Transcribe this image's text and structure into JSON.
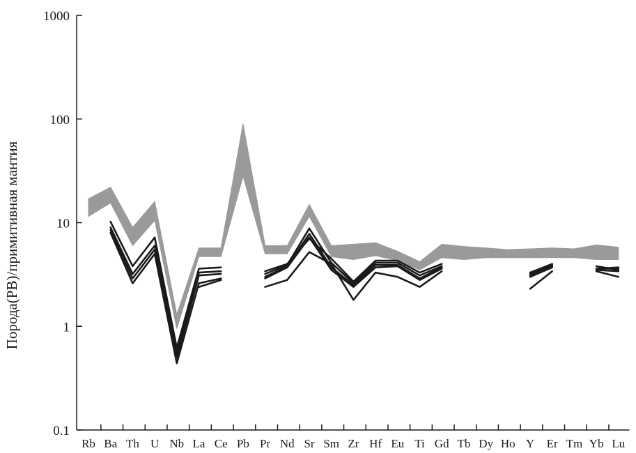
{
  "chart_data": {
    "type": "line",
    "title": "",
    "xlabel": "",
    "ylabel": "Порода(PB)/примитивная мантия",
    "yscale": "log",
    "ylim": [
      0.1,
      1000
    ],
    "yticks": [
      "0.1",
      "1",
      "10",
      "100",
      "1000"
    ],
    "ytick_values": [
      0.1,
      1,
      10,
      100,
      1000
    ],
    "categories": [
      "Rb",
      "Ba",
      "Th",
      "U",
      "Nb",
      "La",
      "Ce",
      "Pb",
      "Pr",
      "Nd",
      "Sr",
      "Sm",
      "Zr",
      "Hf",
      "Eu",
      "Ti",
      "Gd",
      "Tb",
      "Dy",
      "Ho",
      "Y",
      "Er",
      "Tm",
      "Yb",
      "Lu"
    ],
    "grid": false,
    "colors": {
      "band": "#9a9a9a",
      "lines": "#1a1a1a",
      "axis": "#1a1a1a"
    },
    "band": {
      "upper": [
        17,
        22,
        9,
        16,
        1.3,
        5.7,
        5.7,
        90,
        6.0,
        6.0,
        15,
        6.0,
        6.2,
        6.4,
        5.3,
        4.2,
        6.2,
        5.9,
        5.7,
        5.5,
        5.6,
        5.7,
        5.6,
        6.1,
        5.8
      ],
      "lower": [
        11.5,
        15.5,
        6.0,
        10.5,
        0.95,
        4.7,
        4.7,
        28,
        5.0,
        5.0,
        11.5,
        4.7,
        4.4,
        4.8,
        4.3,
        3.5,
        4.6,
        4.4,
        4.6,
        4.6,
        4.6,
        4.6,
        4.6,
        4.4,
        4.4
      ]
    },
    "series": [
      {
        "values": [
          null,
          10.2,
          3.8,
          7.2,
          0.62,
          3.6,
          3.7,
          null,
          3.4,
          4.0,
          7.0,
          4.5,
          2.7,
          4.3,
          4.3,
          3.3,
          4.0,
          null,
          null,
          null,
          3.3,
          4.0,
          null,
          3.8,
          3.5
        ]
      },
      {
        "values": [
          null,
          9.0,
          3.2,
          6.0,
          0.55,
          3.3,
          3.4,
          null,
          3.2,
          3.9,
          8.8,
          4.1,
          2.6,
          4.1,
          4.1,
          3.1,
          3.8,
          null,
          null,
          null,
          3.2,
          3.9,
          null,
          3.6,
          3.7
        ]
      },
      {
        "values": [
          null,
          8.5,
          2.9,
          5.5,
          0.5,
          3.1,
          3.2,
          null,
          3.0,
          3.8,
          7.8,
          3.7,
          2.5,
          3.9,
          3.9,
          2.9,
          3.7,
          null,
          null,
          null,
          3.1,
          3.8,
          null,
          3.5,
          3.4
        ]
      },
      {
        "values": [
          null,
          8.0,
          2.6,
          5.0,
          0.44,
          2.6,
          2.9,
          null,
          2.9,
          3.7,
          7.2,
          3.5,
          2.4,
          3.7,
          3.8,
          2.8,
          3.6,
          null,
          null,
          null,
          3.0,
          3.7,
          null,
          3.4,
          3.0
        ]
      },
      {
        "values": [
          null,
          null,
          null,
          null,
          null,
          2.4,
          2.8,
          null,
          2.4,
          2.8,
          5.2,
          4.0,
          1.8,
          3.3,
          3.0,
          2.4,
          3.4,
          null,
          null,
          null,
          2.3,
          3.4,
          null,
          3.6,
          3.6
        ]
      }
    ]
  }
}
